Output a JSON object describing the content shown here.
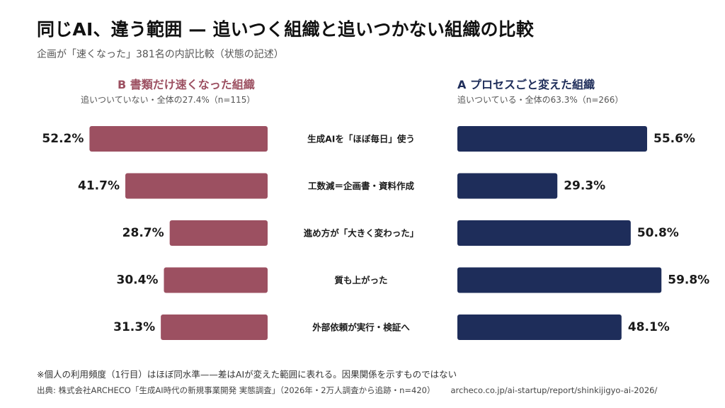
{
  "header": {
    "title": "同じAI、違う範囲 — 追いつく組織と追いつかない組織の比較",
    "subtitle": "企画が「速くなった」381名の内訳比較（状態の記述）"
  },
  "groups": {
    "b": {
      "title": "B 書類だけ速くなった組織",
      "subtitle": "追いついていない・全体の27.4%（n=115）",
      "color": "#9c5061"
    },
    "a": {
      "title": "A プロセスごと変えた組織",
      "subtitle": "追いついている・全体の63.3%（n=266）",
      "color": "#1e2d5a"
    }
  },
  "chart_data": {
    "type": "bar",
    "orientation": "horizontal-butterfly",
    "categories": [
      "生成AIを「ほぼ毎日」使う",
      "工数減＝企画書・資料作成",
      "進め方が「大きく変わった」",
      "質も上がった",
      "外部依頼が実行・検証へ"
    ],
    "series": [
      {
        "name": "B 書類だけ速くなった組織",
        "values": [
          52.2,
          41.7,
          28.7,
          30.4,
          31.3
        ],
        "labels": [
          "52.2%",
          "41.7%",
          "28.7%",
          "30.4%",
          "31.3%"
        ]
      },
      {
        "name": "A プロセスごと変えた組織",
        "values": [
          55.6,
          29.3,
          50.8,
          59.8,
          48.1
        ],
        "labels": [
          "55.6%",
          "29.3%",
          "50.8%",
          "59.8%",
          "48.1%"
        ]
      }
    ],
    "unit": "%",
    "xlim": [
      0,
      100
    ],
    "grid": false
  },
  "footer": {
    "note": "※個人の利用頻度（1行目）はほぼ同水準——差はAIが変えた範囲に表れる。因果関係を示すものではない",
    "source": "出典: 株式会社ARCHECO「生成AI時代の新規事業開発 実態調査」（2026年・2万人調査から追跡・n=420）",
    "url": "archeco.co.jp/ai-startup/report/shinkijigyo-ai-2026/"
  }
}
